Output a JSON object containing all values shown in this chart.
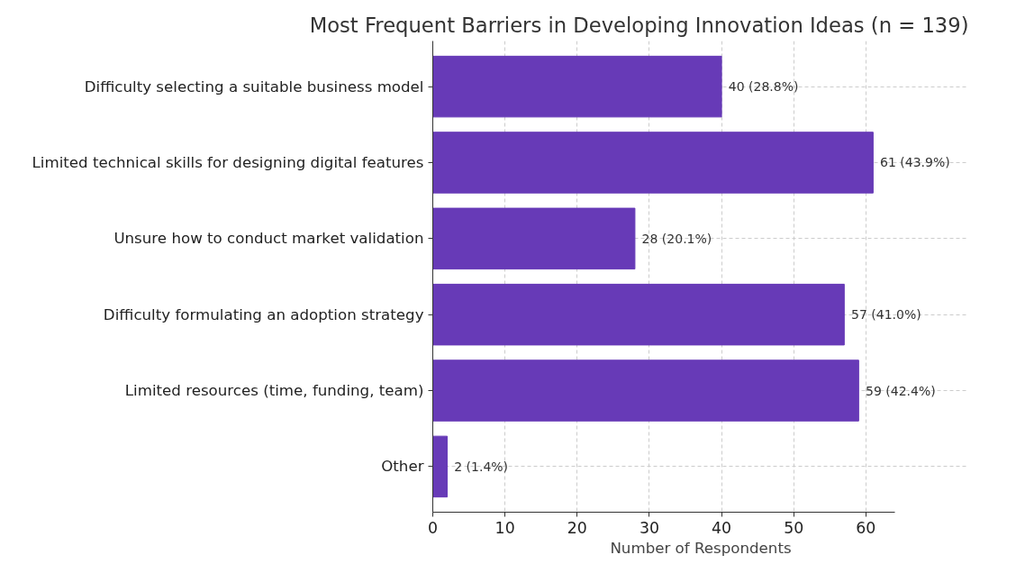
{
  "chart_data": {
    "type": "bar",
    "orientation": "horizontal",
    "title": "Most Frequent Barriers in Developing Innovation Ideas (n = 139)",
    "xlabel": "Number of Respondents",
    "categories": [
      "Difficulty selecting a suitable business model",
      "Limited technical skills for designing digital features",
      "Unsure how to conduct market validation",
      "Difficulty formulating an adoption strategy",
      "Limited resources (time, funding, team)",
      "Other"
    ],
    "series": [
      {
        "color": "#673ab7",
        "values": [
          40,
          61,
          28,
          57,
          59,
          2
        ],
        "value_labels": [
          "40 (28.8%)",
          "61 (43.9%)",
          "28 (20.1%)",
          "57 (41.0%)",
          "59 (42.4%)",
          "2 (1.4%)"
        ]
      }
    ],
    "xlim": [
      0,
      64
    ],
    "xticks": [
      0,
      10,
      20,
      30,
      40,
      50,
      60
    ],
    "grid": true
  }
}
